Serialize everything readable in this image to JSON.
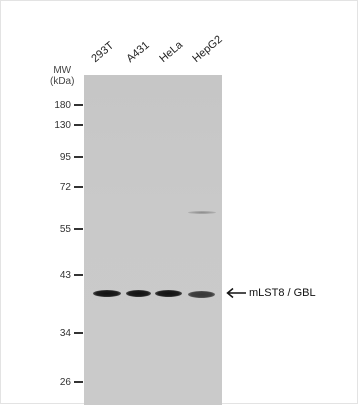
{
  "mw_header": {
    "line1": "MW",
    "line2": "(kDa)"
  },
  "lanes": [
    "293T",
    "A431",
    "HeLa",
    "HepG2"
  ],
  "markers": [
    "180",
    "130",
    "95",
    "72",
    "55",
    "43",
    "34",
    "26"
  ],
  "target_label": "mLST8 / GBL",
  "colors": {
    "membrane": "#c8c8c8",
    "band": "#111111"
  }
}
